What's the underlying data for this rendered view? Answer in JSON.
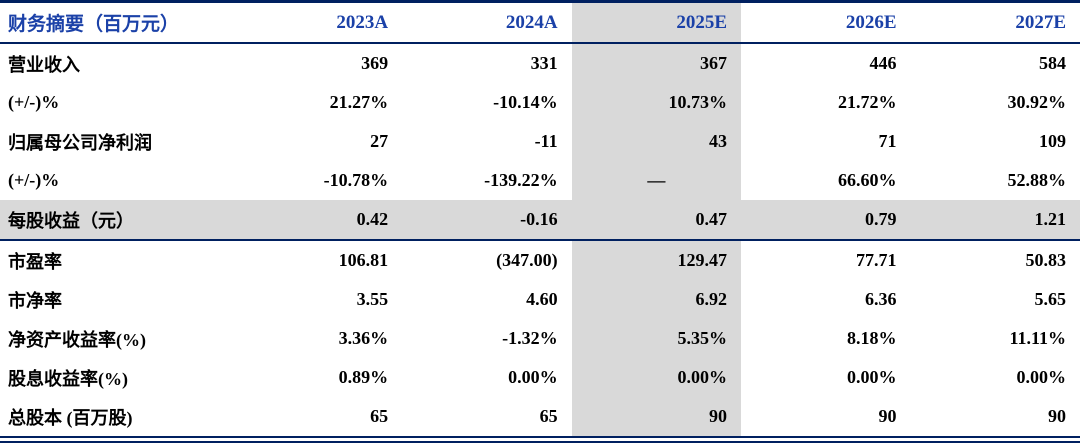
{
  "table": {
    "header": {
      "label": "财务摘要（百万元）",
      "columns": [
        "2023A",
        "2024A",
        "2025E",
        "2026E",
        "2027E"
      ]
    },
    "highlight_column_index": 2,
    "rows": [
      {
        "label": "营业收入",
        "values": [
          "369",
          "331",
          "367",
          "446",
          "584"
        ]
      },
      {
        "label": "(+/-)%",
        "values": [
          "21.27%",
          "-10.14%",
          "10.73%",
          "21.72%",
          "30.92%"
        ]
      },
      {
        "label": "归属母公司净利润",
        "values": [
          "27",
          "-11",
          "43",
          "71",
          "109"
        ]
      },
      {
        "label": "(+/-)%",
        "values": [
          "-10.78%",
          "-139.22%",
          "—",
          "66.60%",
          "52.88%"
        ]
      },
      {
        "label": "每股收益（元）",
        "values": [
          "0.42",
          "-0.16",
          "0.47",
          "0.79",
          "1.21"
        ],
        "highlight": true,
        "divider_below": true
      },
      {
        "label": "市盈率",
        "values": [
          "106.81",
          "(347.00)",
          "129.47",
          "77.71",
          "50.83"
        ]
      },
      {
        "label": "市净率",
        "values": [
          "3.55",
          "4.60",
          "6.92",
          "6.36",
          "5.65"
        ]
      },
      {
        "label": "净资产收益率(%)",
        "values": [
          "3.36%",
          "-1.32%",
          "5.35%",
          "8.18%",
          "11.11%"
        ]
      },
      {
        "label": "股息收益率(%)",
        "values": [
          "0.89%",
          "0.00%",
          "0.00%",
          "0.00%",
          "0.00%"
        ]
      },
      {
        "label": "总股本 (百万股)",
        "values": [
          "65",
          "65",
          "90",
          "90",
          "90"
        ]
      }
    ],
    "colors": {
      "header_text": "#1b41a8",
      "rule_line": "#002060",
      "highlight_bg": "#d9d9d9"
    }
  }
}
